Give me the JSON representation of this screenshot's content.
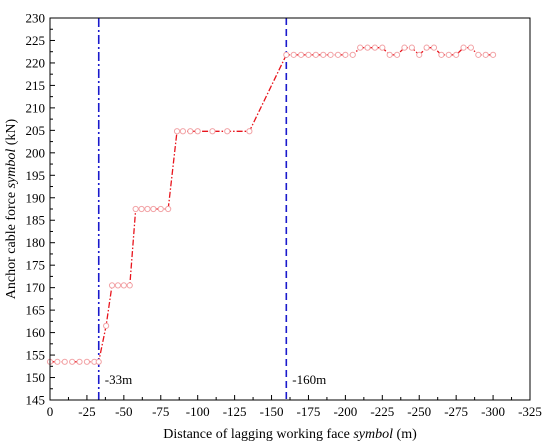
{
  "chart_data": {
    "type": "line",
    "xlabel": "Distance of lagging working face symbol (m)",
    "xlabel_parts": [
      "Distance of lagging working face ",
      "symbol",
      " (m)"
    ],
    "ylabel": "Anchor cable force symbol (kN)",
    "ylabel_parts": [
      "Anchor cable force ",
      "symbol",
      " (kN)"
    ],
    "xlim": [
      0,
      -325
    ],
    "ylim": [
      145,
      230
    ],
    "x_ticks": [
      0,
      -25,
      -50,
      -75,
      -100,
      -125,
      -150,
      -175,
      -200,
      -225,
      -250,
      -275,
      -300,
      -325
    ],
    "x_tick_labels": [
      "0",
      "-25",
      "-50",
      "-75",
      "-100",
      "-125",
      "-150",
      "-175",
      "-200",
      "-225",
      "-250",
      "-275",
      "-300",
      "-325"
    ],
    "y_ticks": [
      145,
      150,
      155,
      160,
      165,
      170,
      175,
      180,
      185,
      190,
      195,
      200,
      205,
      210,
      215,
      220,
      225,
      230
    ],
    "y_tick_labels": [
      "145",
      "150",
      "155",
      "160",
      "165",
      "170",
      "175",
      "180",
      "185",
      "190",
      "195",
      "200",
      "205",
      "210",
      "215",
      "220",
      "225",
      "230"
    ],
    "grid": false,
    "series": [
      {
        "color": "#e8141c",
        "marker": "circle-open",
        "x": [
          0,
          -5,
          -10,
          -15,
          -20,
          -25,
          -30,
          -33,
          -38,
          -42,
          -46,
          -50,
          -54,
          -58,
          -62,
          -66,
          -70,
          -75,
          -80,
          -86,
          -90,
          -95,
          -100,
          -110,
          -120,
          -135,
          -160,
          -165,
          -170,
          -175,
          -180,
          -185,
          -190,
          -195,
          -200,
          -205,
          -210,
          -215,
          -220,
          -225,
          -230,
          -235,
          -240,
          -245,
          -250,
          -255,
          -260,
          -265,
          -270,
          -275,
          -280,
          -285,
          -290,
          -295,
          -300
        ],
        "y": [
          153.5,
          153.5,
          153.5,
          153.5,
          153.5,
          153.5,
          153.5,
          153.5,
          161.5,
          170.5,
          170.5,
          170.5,
          170.5,
          187.5,
          187.5,
          187.5,
          187.5,
          187.5,
          187.5,
          204.8,
          204.8,
          204.8,
          204.8,
          204.8,
          204.8,
          204.8,
          221.8,
          221.8,
          221.8,
          221.8,
          221.8,
          221.8,
          221.8,
          221.8,
          221.8,
          221.8,
          223.4,
          223.4,
          223.4,
          223.4,
          221.8,
          221.8,
          223.4,
          223.4,
          221.8,
          223.4,
          223.4,
          221.8,
          221.8,
          221.8,
          223.4,
          223.4,
          221.8,
          221.8,
          221.8
        ]
      }
    ],
    "reference_lines": [
      {
        "x": -33,
        "color": "#1a1acc",
        "style": "dash-dot",
        "label": "-33m"
      },
      {
        "x": -160,
        "color": "#1a1acc",
        "style": "dash",
        "label": "-160m"
      }
    ]
  }
}
